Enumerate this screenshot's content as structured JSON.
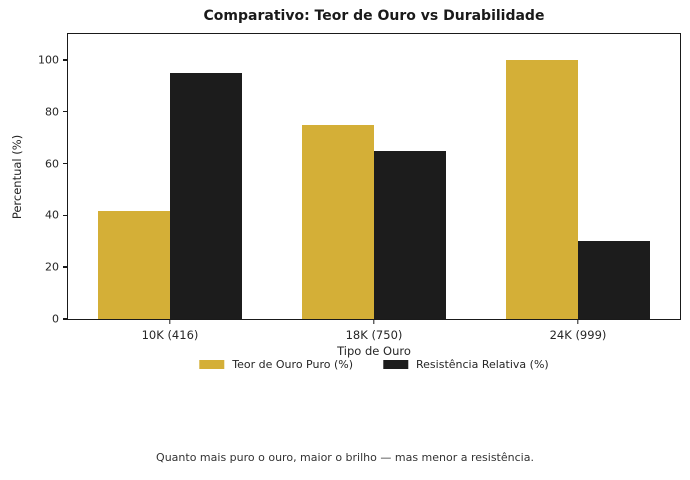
{
  "title": "Comparativo: Teor de Ouro vs Durabilidade",
  "caption": "Quanto mais puro o ouro, maior o brilho — mas menor a resistência.",
  "colors": {
    "gold_series": "#D4AF37",
    "black_series": "#1C1C1C",
    "spine": "#1A1A1A",
    "tick_text": "#262626",
    "caption_text": "#333333"
  },
  "chart_data": {
    "type": "bar",
    "title": "Comparativo: Teor de Ouro vs Durabilidade",
    "xlabel": "Tipo de Ouro",
    "ylabel": "Percentual (%)",
    "categories": [
      "10K (416)",
      "18K (750)",
      "24K (999)"
    ],
    "series": [
      {
        "name": "Teor de Ouro Puro (%)",
        "color": "#D4AF37",
        "values": [
          41.6,
          75.0,
          99.9
        ]
      },
      {
        "name": "Resistência Relativa (%)",
        "color": "#1C1C1C",
        "values": [
          95,
          65,
          30
        ]
      }
    ],
    "ylim": [
      0,
      110
    ],
    "yticks": [
      0,
      20,
      40,
      60,
      80,
      100
    ],
    "grid": false,
    "legend_position": "below-axis",
    "annotation": "Quanto mais puro o ouro, maior o brilho — mas menor a resistência."
  }
}
